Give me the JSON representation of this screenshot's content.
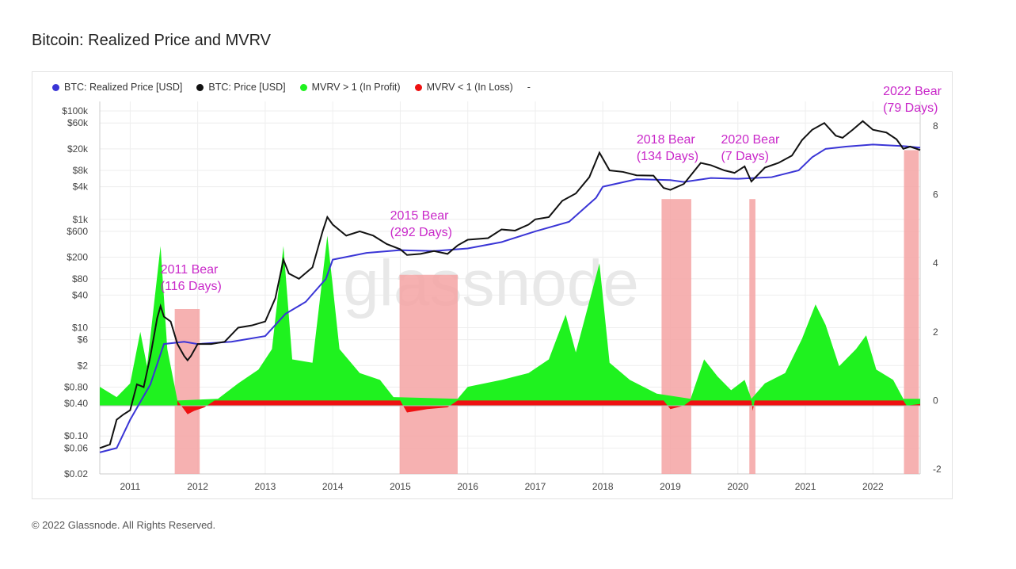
{
  "title": "Bitcoin: Realized Price and MVRV",
  "footer": "© 2022 Glassnode. All Rights Reserved.",
  "watermark": "glassnode",
  "colors": {
    "realized": "#3a35d6",
    "price": "#111111",
    "profit": "#1ff21f",
    "loss": "#ee1111",
    "bear_band": "#f5a3a3",
    "annotation": "#c928c9",
    "grid": "#eeeeee"
  },
  "legend": [
    {
      "label": "BTC: Realized Price [USD]",
      "color": "#3a35d6"
    },
    {
      "label": "BTC: Price [USD]",
      "color": "#111111"
    },
    {
      "label": "MVRV > 1 (In Profit)",
      "color": "#1ff21f"
    },
    {
      "label": "MVRV < 1 (In Loss)",
      "color": "#ee1111"
    },
    {
      "label": "-",
      "color": ""
    }
  ],
  "chart_data": {
    "type": "line",
    "x_ticks": [
      "2011",
      "2012",
      "2013",
      "2014",
      "2015",
      "2016",
      "2017",
      "2018",
      "2019",
      "2020",
      "2021",
      "2022"
    ],
    "y_left_ticks": [
      "$100k",
      "$60k",
      "$20k",
      "$8k",
      "$4k",
      "$1k",
      "$600",
      "$200",
      "$80",
      "$40",
      "$10",
      "$6",
      "$2",
      "$0.80",
      "$0.40",
      "$0.10",
      "$0.06",
      "$0.02"
    ],
    "y_right_ticks": [
      "8",
      "6",
      "4",
      "2",
      "0",
      "-2"
    ],
    "y_left_scale": "log",
    "y_left_range": [
      0.02,
      150000
    ],
    "y_right_range": [
      -2,
      8
    ],
    "x_range": [
      2010.55,
      2022.7
    ],
    "series": [
      {
        "name": "BTC: Price [USD]",
        "points": [
          [
            2010.55,
            0.06
          ],
          [
            2010.7,
            0.07
          ],
          [
            2010.8,
            0.2
          ],
          [
            2010.9,
            0.25
          ],
          [
            2011.0,
            0.3
          ],
          [
            2011.1,
            0.9
          ],
          [
            2011.2,
            0.8
          ],
          [
            2011.3,
            3
          ],
          [
            2011.4,
            15
          ],
          [
            2011.45,
            25
          ],
          [
            2011.5,
            16
          ],
          [
            2011.6,
            13
          ],
          [
            2011.7,
            5
          ],
          [
            2011.8,
            3
          ],
          [
            2011.85,
            2.5
          ],
          [
            2011.9,
            3
          ],
          [
            2012.0,
            5
          ],
          [
            2012.2,
            5
          ],
          [
            2012.4,
            5.5
          ],
          [
            2012.6,
            10
          ],
          [
            2012.8,
            11
          ],
          [
            2013.0,
            13
          ],
          [
            2013.15,
            35
          ],
          [
            2013.27,
            180
          ],
          [
            2013.35,
            100
          ],
          [
            2013.5,
            80
          ],
          [
            2013.7,
            130
          ],
          [
            2013.85,
            600
          ],
          [
            2013.92,
            1100
          ],
          [
            2014.0,
            800
          ],
          [
            2014.2,
            500
          ],
          [
            2014.4,
            600
          ],
          [
            2014.6,
            500
          ],
          [
            2014.8,
            350
          ],
          [
            2015.0,
            280
          ],
          [
            2015.1,
            220
          ],
          [
            2015.3,
            230
          ],
          [
            2015.5,
            260
          ],
          [
            2015.7,
            230
          ],
          [
            2015.85,
            330
          ],
          [
            2016.0,
            420
          ],
          [
            2016.3,
            450
          ],
          [
            2016.5,
            650
          ],
          [
            2016.7,
            620
          ],
          [
            2016.9,
            800
          ],
          [
            2017.0,
            1000
          ],
          [
            2017.2,
            1100
          ],
          [
            2017.4,
            2200
          ],
          [
            2017.6,
            3000
          ],
          [
            2017.8,
            6000
          ],
          [
            2017.95,
            17000
          ],
          [
            2018.1,
            8000
          ],
          [
            2018.3,
            7500
          ],
          [
            2018.5,
            6500
          ],
          [
            2018.75,
            6400
          ],
          [
            2018.9,
            3800
          ],
          [
            2019.0,
            3500
          ],
          [
            2019.2,
            4500
          ],
          [
            2019.45,
            11000
          ],
          [
            2019.6,
            10000
          ],
          [
            2019.8,
            8000
          ],
          [
            2019.95,
            7200
          ],
          [
            2020.1,
            9500
          ],
          [
            2020.2,
            5000
          ],
          [
            2020.4,
            9000
          ],
          [
            2020.6,
            11000
          ],
          [
            2020.8,
            15000
          ],
          [
            2020.95,
            29000
          ],
          [
            2021.1,
            45000
          ],
          [
            2021.28,
            60000
          ],
          [
            2021.45,
            35000
          ],
          [
            2021.55,
            32000
          ],
          [
            2021.7,
            45000
          ],
          [
            2021.85,
            65000
          ],
          [
            2022.0,
            45000
          ],
          [
            2022.2,
            40000
          ],
          [
            2022.35,
            30000
          ],
          [
            2022.45,
            20000
          ],
          [
            2022.55,
            22000
          ],
          [
            2022.7,
            19000
          ]
        ]
      },
      {
        "name": "BTC: Realized Price [USD]",
        "points": [
          [
            2010.55,
            0.05
          ],
          [
            2010.8,
            0.06
          ],
          [
            2011.0,
            0.2
          ],
          [
            2011.3,
            0.9
          ],
          [
            2011.5,
            5
          ],
          [
            2011.8,
            5.5
          ],
          [
            2012.0,
            5
          ],
          [
            2012.5,
            5.5
          ],
          [
            2013.0,
            7
          ],
          [
            2013.3,
            18
          ],
          [
            2013.6,
            30
          ],
          [
            2013.9,
            80
          ],
          [
            2014.0,
            180
          ],
          [
            2014.5,
            240
          ],
          [
            2015.0,
            270
          ],
          [
            2015.5,
            260
          ],
          [
            2016.0,
            290
          ],
          [
            2016.5,
            380
          ],
          [
            2017.0,
            600
          ],
          [
            2017.5,
            900
          ],
          [
            2017.9,
            2500
          ],
          [
            2018.0,
            4000
          ],
          [
            2018.5,
            5500
          ],
          [
            2019.0,
            5300
          ],
          [
            2019.2,
            4900
          ],
          [
            2019.6,
            5800
          ],
          [
            2020.0,
            5600
          ],
          [
            2020.5,
            6000
          ],
          [
            2020.9,
            8000
          ],
          [
            2021.1,
            14000
          ],
          [
            2021.3,
            20000
          ],
          [
            2021.6,
            22000
          ],
          [
            2022.0,
            24000
          ],
          [
            2022.45,
            22500
          ],
          [
            2022.7,
            21000
          ]
        ]
      },
      {
        "name": "MVRV > 1 (In Profit)",
        "points": [
          [
            2010.55,
            0.4
          ],
          [
            2010.8,
            0.1
          ],
          [
            2011.0,
            0.5
          ],
          [
            2011.15,
            2
          ],
          [
            2011.25,
            1
          ],
          [
            2011.45,
            4.5
          ],
          [
            2011.55,
            1.5
          ],
          [
            2011.7,
            0
          ],
          [
            2012.3,
            0.05
          ],
          [
            2012.6,
            0.5
          ],
          [
            2012.9,
            0.9
          ],
          [
            2013.1,
            1.5
          ],
          [
            2013.27,
            4.5
          ],
          [
            2013.4,
            1.2
          ],
          [
            2013.7,
            1.1
          ],
          [
            2013.92,
            4.8
          ],
          [
            2014.1,
            1.5
          ],
          [
            2014.4,
            0.8
          ],
          [
            2014.7,
            0.6
          ],
          [
            2014.9,
            0.1
          ],
          [
            2015.85,
            0.05
          ],
          [
            2016.0,
            0.4
          ],
          [
            2016.5,
            0.6
          ],
          [
            2016.9,
            0.8
          ],
          [
            2017.2,
            1.2
          ],
          [
            2017.45,
            2.5
          ],
          [
            2017.6,
            1.4
          ],
          [
            2017.95,
            4
          ],
          [
            2018.1,
            1.1
          ],
          [
            2018.4,
            0.6
          ],
          [
            2018.8,
            0.2
          ],
          [
            2019.3,
            0.05
          ],
          [
            2019.5,
            1.2
          ],
          [
            2019.7,
            0.7
          ],
          [
            2019.9,
            0.3
          ],
          [
            2020.1,
            0.6
          ],
          [
            2020.2,
            0.05
          ],
          [
            2020.4,
            0.5
          ],
          [
            2020.7,
            0.8
          ],
          [
            2020.95,
            1.8
          ],
          [
            2021.15,
            2.8
          ],
          [
            2021.3,
            2.2
          ],
          [
            2021.5,
            1.0
          ],
          [
            2021.75,
            1.5
          ],
          [
            2021.9,
            1.9
          ],
          [
            2022.05,
            0.9
          ],
          [
            2022.3,
            0.6
          ],
          [
            2022.45,
            0.05
          ],
          [
            2022.7,
            0.05
          ]
        ]
      },
      {
        "name": "MVRV < 1 (In Loss)",
        "points": [
          [
            2011.7,
            0
          ],
          [
            2011.85,
            -0.4
          ],
          [
            2011.95,
            -0.3
          ],
          [
            2012.1,
            -0.2
          ],
          [
            2012.25,
            0
          ],
          [
            2015.0,
            0
          ],
          [
            2015.1,
            -0.35
          ],
          [
            2015.4,
            -0.25
          ],
          [
            2015.7,
            -0.2
          ],
          [
            2015.85,
            0
          ],
          [
            2018.9,
            0
          ],
          [
            2019.0,
            -0.25
          ],
          [
            2019.2,
            -0.15
          ],
          [
            2019.3,
            0
          ],
          [
            2020.2,
            0
          ],
          [
            2020.22,
            -0.3
          ],
          [
            2020.25,
            0
          ],
          [
            2022.45,
            0
          ],
          [
            2022.5,
            -0.15
          ],
          [
            2022.7,
            -0.1
          ]
        ]
      }
    ],
    "bear_periods": [
      {
        "start": 2011.66,
        "end": 2012.03
      },
      {
        "start": 2014.99,
        "end": 2015.85
      },
      {
        "start": 2018.87,
        "end": 2019.31
      },
      {
        "start": 2020.17,
        "end": 2020.26
      },
      {
        "start": 2022.46,
        "end": 2022.68
      }
    ],
    "annotations": [
      {
        "lines": [
          "2011 Bear",
          "(116 Days)"
        ],
        "x": 2011.45,
        "y": 100
      },
      {
        "lines": [
          "2015 Bear",
          "(292 Days)"
        ],
        "x": 2014.85,
        "y": 1000
      },
      {
        "lines": [
          "2018 Bear",
          "(134 Days)"
        ],
        "x": 2018.5,
        "y": 25000
      },
      {
        "lines": [
          "2020 Bear",
          "(7 Days)"
        ],
        "x": 2019.75,
        "y": 25000
      },
      {
        "lines": [
          "2022 Bear",
          "(79 Days)"
        ],
        "x": 2022.15,
        "y": 200000
      }
    ]
  }
}
